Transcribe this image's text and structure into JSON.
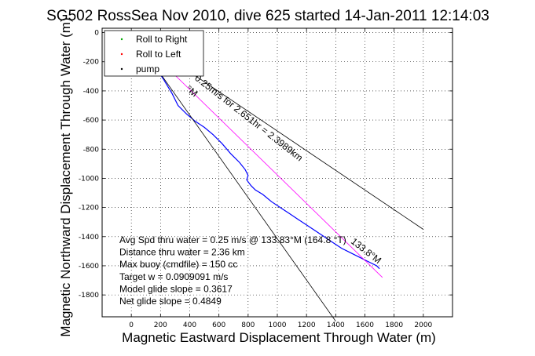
{
  "chart_data": {
    "type": "line",
    "title": "SG502 RossSea Nov 2010, dive 625 started 14-Jan-2011 12:14:03",
    "xlabel": "Magnetic Eastward Displacement Through Water (m)",
    "ylabel": "Magnetic Northward Displacement Through Water (m)",
    "xlim": [
      -200,
      2200
    ],
    "ylim": [
      -1950,
      30
    ],
    "xticks": [
      0,
      200,
      400,
      600,
      800,
      1000,
      1200,
      1400,
      1600,
      1800,
      2000
    ],
    "yticks": [
      0,
      -200,
      -400,
      -600,
      -800,
      -1000,
      -1200,
      -1400,
      -1600,
      -1800
    ],
    "grid": true,
    "legend": {
      "placement": "top-left",
      "entries": [
        {
          "label": "Roll to Right",
          "color": "#00aa00"
        },
        {
          "label": "Roll to Left",
          "color": "#ff0000"
        },
        {
          "label": "pump",
          "color": "#000000"
        }
      ]
    },
    "series": [
      {
        "kind": "track",
        "color": "#0000ff",
        "x": [
          0,
          20,
          60,
          110,
          160,
          220,
          280,
          320,
          380,
          440,
          500,
          560,
          620,
          680,
          740,
          780,
          800,
          790,
          820,
          850,
          900,
          960,
          1020,
          1080,
          1140,
          1200,
          1260,
          1320,
          1380,
          1440,
          1500,
          1560,
          1620,
          1680,
          1700
        ],
        "y": [
          0,
          -30,
          -90,
          -160,
          -230,
          -320,
          -420,
          -500,
          -560,
          -610,
          -650,
          -700,
          -760,
          -830,
          -890,
          -940,
          -980,
          -1010,
          -1050,
          -1080,
          -1110,
          -1160,
          -1200,
          -1240,
          -1280,
          -1320,
          -1360,
          -1400,
          -1440,
          -1480,
          -1510,
          -1540,
          -1570,
          -1600,
          -1620
        ]
      },
      {
        "kind": "course",
        "color": "#ff00ff",
        "x": [
          0,
          1720
        ],
        "y": [
          0,
          -1680
        ]
      },
      {
        "kind": "heading-line",
        "color": "#000000",
        "x": [
          0,
          2000
        ],
        "y": [
          0,
          -1350
        ]
      },
      {
        "kind": "heading-line",
        "color": "#000000",
        "x": [
          0,
          1400
        ],
        "y": [
          0,
          -1980
        ]
      }
    ],
    "annotations": [
      {
        "text": "0.25m/s for 2.651hr = 2.3989km",
        "x": 430,
        "y": -320,
        "rotation": 38
      },
      {
        "text": "133.8°M",
        "x": 1500,
        "y": -1440,
        "rotation": 38
      },
      {
        "text": "°M",
        "x": 370,
        "y": -395,
        "rotation": 38
      }
    ],
    "stats": [
      "Avg Spd thru water =  0.25 m/s @ 133.83°M (164.8 °T)",
      "Distance thru water =  2.36 km",
      "Max buoy (cmdfile) = 150 cc",
      "Target w = 0.0909091 m/s",
      "Model glide slope = 0.3617",
      "Net glide slope = 0.4849"
    ]
  }
}
